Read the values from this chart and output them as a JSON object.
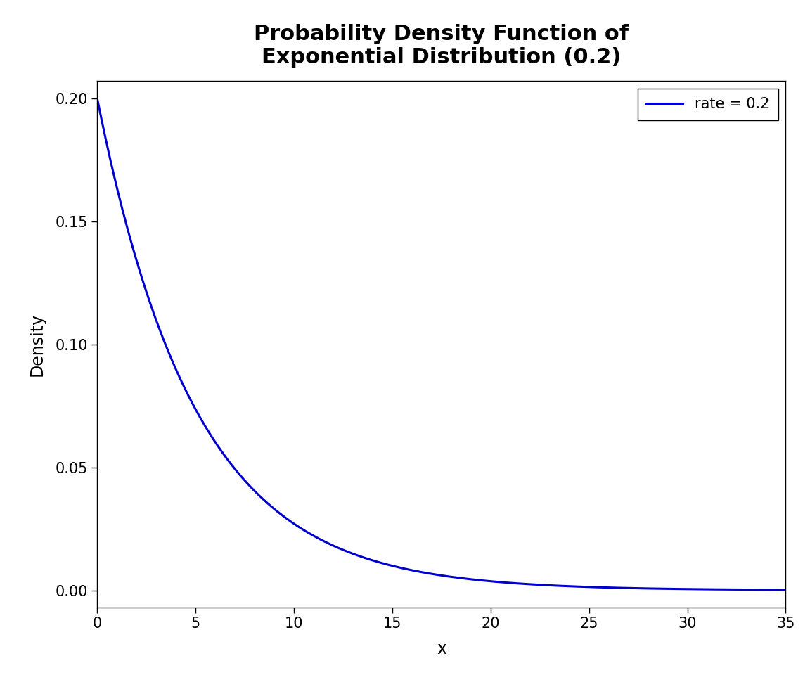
{
  "title_line1": "Probability Density Function of",
  "title_line2": "Exponential Distribution (0.2)",
  "xlabel": "x",
  "ylabel": "Density",
  "rate": 0.2,
  "x_min": 0,
  "x_max": 35,
  "y_min": -0.007,
  "y_max": 0.207,
  "x_ticks": [
    0,
    5,
    10,
    15,
    20,
    25,
    30,
    35
  ],
  "y_ticks": [
    0.0,
    0.05,
    0.1,
    0.15,
    0.2
  ],
  "line_color": "#0000CD",
  "line_width": 2.2,
  "legend_label": "rate = 0.2",
  "background_color": "#FFFFFF",
  "title_fontsize": 22,
  "axis_label_fontsize": 17,
  "tick_fontsize": 15,
  "legend_fontsize": 15
}
